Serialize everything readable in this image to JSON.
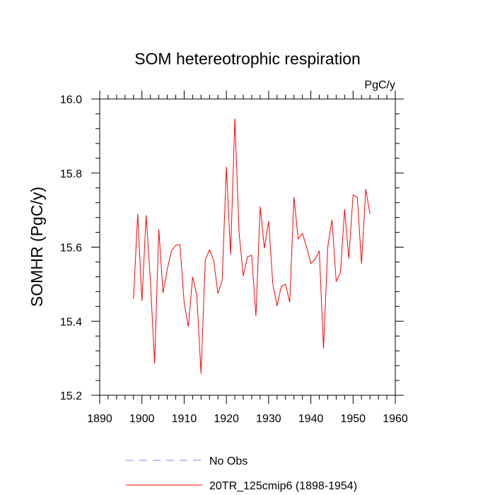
{
  "chart_data": {
    "type": "line",
    "title": "SOM hetereotrophic respiration",
    "units_label": "PgC/y",
    "xlabel": "",
    "ylabel": "SOMHR  (PgC/y)",
    "xlim": [
      1890,
      1960
    ],
    "ylim": [
      15.2,
      16.0
    ],
    "x_ticks": [
      1890,
      1900,
      1910,
      1920,
      1930,
      1940,
      1950,
      1960
    ],
    "x_tick_labels": [
      "1890",
      "1900",
      "1910",
      "1920",
      "1930",
      "1940",
      "1950",
      "1960"
    ],
    "y_ticks": [
      15.2,
      15.4,
      15.6,
      15.8,
      16.0
    ],
    "y_tick_labels": [
      "15.2",
      "15.4",
      "15.6",
      "15.8",
      "16.0"
    ],
    "series": [
      {
        "name": "20TR_125cmip6 (1898-1954)",
        "color": "#ff0000",
        "x": [
          1898,
          1899,
          1900,
          1901,
          1902,
          1903,
          1904,
          1905,
          1906,
          1907,
          1908,
          1909,
          1910,
          1911,
          1912,
          1913,
          1914,
          1915,
          1916,
          1917,
          1918,
          1919,
          1920,
          1921,
          1922,
          1923,
          1924,
          1925,
          1926,
          1927,
          1928,
          1929,
          1930,
          1931,
          1932,
          1933,
          1934,
          1935,
          1936,
          1937,
          1938,
          1939,
          1940,
          1941,
          1942,
          1943,
          1944,
          1945,
          1946,
          1947,
          1948,
          1949,
          1950,
          1951,
          1952,
          1953,
          1954
        ],
        "values": [
          15.46,
          15.69,
          15.455,
          15.686,
          15.51,
          15.286,
          15.648,
          15.476,
          15.54,
          15.59,
          15.605,
          15.607,
          15.45,
          15.385,
          15.52,
          15.47,
          15.258,
          15.565,
          15.593,
          15.563,
          15.475,
          15.51,
          15.817,
          15.58,
          15.947,
          15.64,
          15.522,
          15.574,
          15.578,
          15.414,
          15.71,
          15.597,
          15.67,
          15.5,
          15.441,
          15.494,
          15.5,
          15.451,
          15.735,
          15.622,
          15.637,
          15.6,
          15.556,
          15.567,
          15.59,
          15.326,
          15.6,
          15.674,
          15.508,
          15.53,
          15.702,
          15.569,
          15.741,
          15.735,
          15.555,
          15.757,
          15.69
        ]
      }
    ],
    "legend": [
      {
        "label": "No Obs",
        "color": "#8080ff",
        "style": "dashed"
      },
      {
        "label": "20TR_125cmip6 (1898-1954)",
        "color": "#ff0000",
        "style": "solid"
      }
    ],
    "legend_position": "bottom-center",
    "grid": false
  }
}
